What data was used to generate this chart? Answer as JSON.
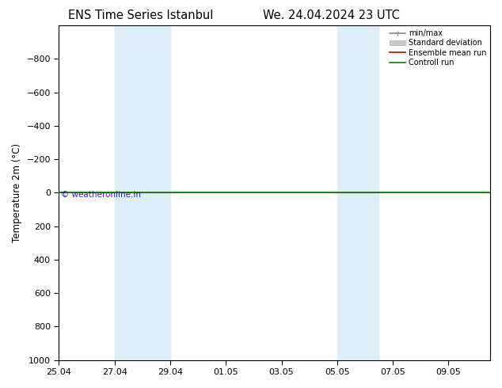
{
  "title1": "ENS Time Series Istanbul",
  "title2": "We. 24.04.2024 23 UTC",
  "ylabel": "Temperature 2m (°C)",
  "watermark": "© weatheronline.in",
  "ylim_top": -1000,
  "ylim_bottom": 1000,
  "yticks": [
    -800,
    -600,
    -400,
    -200,
    0,
    200,
    400,
    600,
    800,
    1000
  ],
  "xlim": [
    0,
    15.5
  ],
  "xtick_labels": [
    "25.04",
    "27.04",
    "29.04",
    "01.05",
    "03.05",
    "05.05",
    "07.05",
    "09.05"
  ],
  "xtick_positions": [
    0,
    2,
    4,
    6,
    8,
    10,
    12,
    14
  ],
  "shade_bands": [
    {
      "start": 2,
      "end": 4
    },
    {
      "start": 10,
      "end": 11.5
    }
  ],
  "shade_color": "#ddeef8",
  "hline_y": 0,
  "green_line_color": "#008000",
  "red_line_color": "#cc0000",
  "legend_items": [
    {
      "label": "min/max",
      "color": "#888888",
      "lw": 1.2,
      "style": "minmax"
    },
    {
      "label": "Standard deviation",
      "color": "#c0c0c0",
      "lw": 7,
      "style": "thick"
    },
    {
      "label": "Ensemble mean run",
      "color": "#cc0000",
      "lw": 1.2,
      "style": "line"
    },
    {
      "label": "Controll run",
      "color": "#008000",
      "lw": 1.2,
      "style": "line"
    }
  ],
  "background_color": "#ffffff",
  "plot_bg_color": "#ffffff",
  "title_fontsize": 10.5,
  "axis_fontsize": 8.5,
  "tick_fontsize": 8
}
